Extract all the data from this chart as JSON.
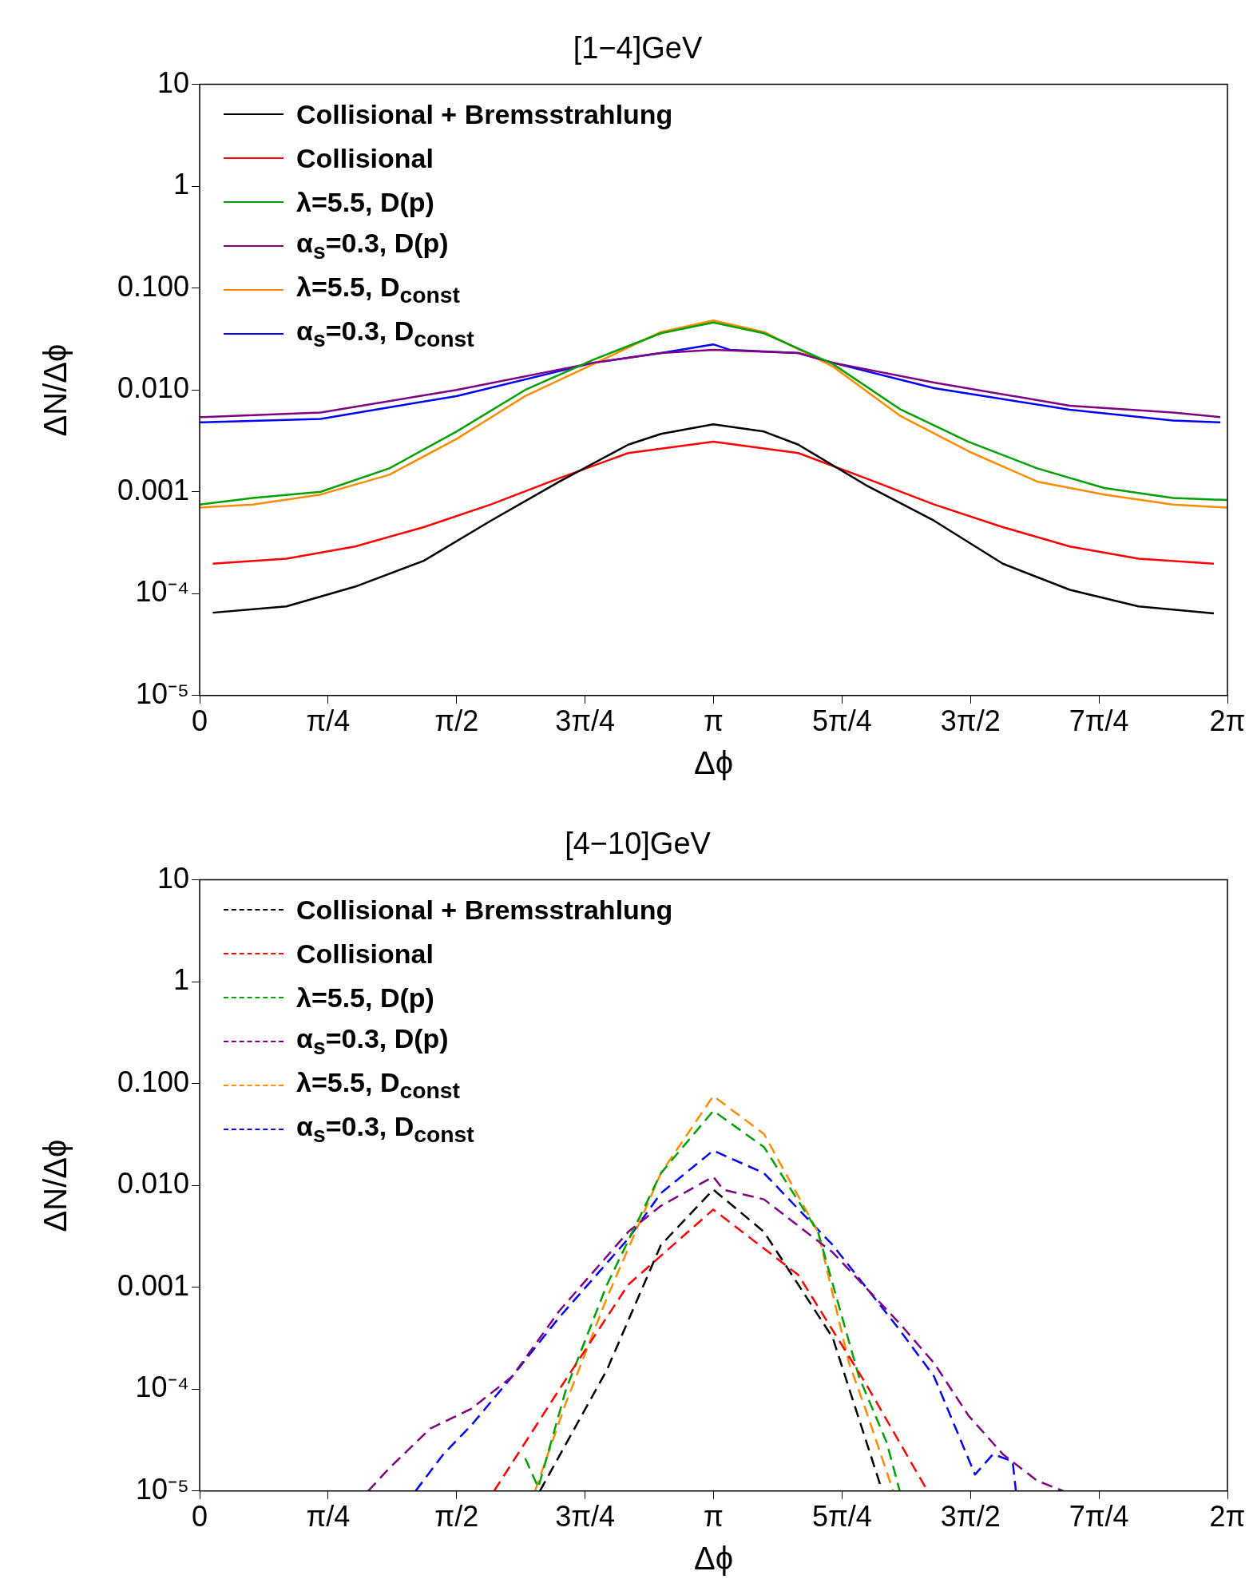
{
  "chart_data": [
    {
      "type": "line",
      "title": "[1−4]GeV",
      "xlabel": "Δϕ",
      "ylabel": "ΔN/Δϕ",
      "log": "y",
      "legend": "top left",
      "line_style": "solid",
      "marker": "none",
      "grid": false,
      "xlim": [
        0,
        6.2832
      ],
      "xticks": [
        0,
        {
          "value": 0.7854,
          "label": "π/4"
        },
        {
          "value": 1.5708,
          "label": "π/2"
        },
        {
          "value": 2.3562,
          "label": "3π/4"
        },
        {
          "value": 3.1416,
          "label": "π"
        },
        {
          "value": 3.927,
          "label": "5π/4"
        },
        {
          "value": 4.7124,
          "label": "3π/2"
        },
        {
          "value": 5.4978,
          "label": "7π/4"
        },
        {
          "value": 6.2832,
          "label": "2π"
        }
      ],
      "ylim": [
        1e-05,
        10
      ],
      "yticks": [
        {
          "value": 1e-05,
          "label": "10⁻⁵"
        },
        {
          "value": 0.0001,
          "label": "10⁻⁴"
        },
        {
          "value": 0.001,
          "label": "0.001"
        },
        {
          "value": 0.01,
          "label": "0.010"
        },
        {
          "value": 0.1,
          "label": "0.100"
        },
        {
          "value": 1,
          "label": "1"
        },
        {
          "value": 10,
          "label": "10"
        }
      ],
      "series": [
        {
          "name": "Collisional + Bremsstrahlung",
          "color": "#000000",
          "x": [
            0.08,
            0.53,
            0.95,
            1.37,
            1.78,
            2.2,
            2.62,
            2.82,
            3.14,
            3.45,
            3.66,
            4.07,
            4.49,
            4.91,
            5.32,
            5.74,
            6.2
          ],
          "values": [
            6.5e-05,
            7.5e-05,
            0.000117,
            0.00021,
            0.00052,
            0.00126,
            0.0029,
            0.0037,
            0.0046,
            0.0039,
            0.0029,
            0.00117,
            0.00052,
            0.000197,
            0.000109,
            7.5e-05,
            6.4e-05
          ]
        },
        {
          "name": "Collisional",
          "color": "#ff0000",
          "x": [
            0.08,
            0.53,
            0.95,
            1.37,
            1.78,
            2.2,
            2.62,
            3.14,
            3.66,
            4.07,
            4.49,
            4.91,
            5.32,
            5.74,
            6.2
          ],
          "values": [
            0.000197,
            0.00022,
            0.00029,
            0.00045,
            0.00075,
            0.00136,
            0.0024,
            0.0031,
            0.0024,
            0.00136,
            0.00075,
            0.00045,
            0.00029,
            0.00022,
            0.000197
          ]
        },
        {
          "name": "λ=5.5, D(p)",
          "color": "#00a000",
          "x": [
            0,
            0.325,
            0.74,
            1.16,
            1.57,
            1.99,
            2.41,
            2.82,
            3.14,
            3.45,
            3.87,
            4.28,
            4.7,
            5.12,
            5.53,
            5.95,
            6.28
          ],
          "values": [
            0.00075,
            0.00087,
            0.001,
            0.0017,
            0.0039,
            0.01,
            0.0199,
            0.036,
            0.046,
            0.036,
            0.018,
            0.0065,
            0.0031,
            0.0017,
            0.00109,
            0.00087,
            0.00083
          ]
        },
        {
          "name": "α$_{s}$=0.3, D(p)",
          "color": "#800080",
          "x": [
            0,
            0.74,
            1.57,
            2.41,
            2.82,
            3.14,
            3.66,
            3.87,
            4.49,
            5.32,
            5.95,
            6.24
          ],
          "values": [
            0.0054,
            0.006,
            0.01,
            0.0185,
            0.023,
            0.0248,
            0.023,
            0.0185,
            0.0118,
            0.007,
            0.006,
            0.0054
          ]
        },
        {
          "name": "λ=5.5, D$_{const}$",
          "color": "#ff8c00",
          "x": [
            0,
            0.325,
            0.74,
            1.16,
            1.57,
            1.99,
            2.41,
            2.82,
            3.14,
            3.45,
            3.87,
            4.28,
            4.7,
            5.12,
            5.53,
            5.95,
            6.28
          ],
          "values": [
            0.0007,
            0.00075,
            0.00094,
            0.00147,
            0.0033,
            0.0087,
            0.018,
            0.037,
            0.048,
            0.037,
            0.017,
            0.0056,
            0.0025,
            0.00126,
            0.00094,
            0.00075,
            0.0007
          ]
        },
        {
          "name": "α$_{s}$=0.3, D$_{const}$",
          "color": "#0000ff",
          "x": [
            0,
            0.74,
            1.57,
            2.41,
            2.82,
            3.14,
            3.24,
            3.66,
            3.87,
            4.49,
            5.32,
            5.95,
            6.24
          ],
          "values": [
            0.0048,
            0.0052,
            0.0087,
            0.0185,
            0.023,
            0.028,
            0.0248,
            0.023,
            0.0185,
            0.0104,
            0.0064,
            0.005,
            0.0048
          ]
        }
      ]
    },
    {
      "type": "line",
      "title": "[4−10]GeV",
      "xlabel": "Δϕ",
      "ylabel": "ΔN/Δϕ",
      "log": "y",
      "legend": "top left",
      "line_style": "dashed",
      "marker": "none",
      "grid": false,
      "xlim": [
        0,
        6.2832
      ],
      "xticks": [
        0,
        {
          "value": 0.7854,
          "label": "π/4"
        },
        {
          "value": 1.5708,
          "label": "π/2"
        },
        {
          "value": 2.3562,
          "label": "3π/4"
        },
        {
          "value": 3.1416,
          "label": "π"
        },
        {
          "value": 3.927,
          "label": "5π/4"
        },
        {
          "value": 4.7124,
          "label": "3π/2"
        },
        {
          "value": 5.4978,
          "label": "7π/4"
        },
        {
          "value": 6.2832,
          "label": "2π"
        }
      ],
      "ylim": [
        1e-05,
        10
      ],
      "yticks": [
        {
          "value": 1e-05,
          "label": "10⁻⁵"
        },
        {
          "value": 0.0001,
          "label": "10⁻⁴"
        },
        {
          "value": 0.001,
          "label": "0.001"
        },
        {
          "value": 0.01,
          "label": "0.010"
        },
        {
          "value": 0.1,
          "label": "0.100"
        },
        {
          "value": 1,
          "label": "1"
        },
        {
          "value": 10,
          "label": "10"
        }
      ],
      "series": [
        {
          "name": "Collisional + Bremsstrahlung",
          "color": "#000000",
          "x": [
            2.08,
            2.49,
            2.82,
            3.14,
            3.45,
            3.87,
            4.16
          ],
          "values": [
            1e-05,
            0.000155,
            0.0026,
            0.0091,
            0.0035,
            0.00032,
            1.16e-05
          ]
        },
        {
          "name": "Collisional",
          "color": "#ff0000",
          "x": [
            1.8,
            2.2,
            2.62,
            3.14,
            3.66,
            4.07,
            4.45
          ],
          "values": [
            1e-05,
            0.0001,
            0.00106,
            0.0058,
            0.00132,
            0.000115,
            1e-05
          ]
        },
        {
          "name": "λ=5.5, D(p)",
          "color": "#00a000",
          "x": [
            1.99,
            2.07,
            2.24,
            2.49,
            2.82,
            3.14,
            3.45,
            3.78,
            4.03,
            4.2,
            4.28
          ],
          "values": [
            2.1e-05,
            1.08e-05,
            0.0001,
            0.00106,
            0.0132,
            0.054,
            0.0238,
            0.0035,
            0.000133,
            3e-05,
            1e-05
          ]
        },
        {
          "name": "α$_{s}$=0.3, D(p)",
          "color": "#800080",
          "x": [
            1.03,
            1.16,
            1.41,
            1.66,
            1.91,
            2.2,
            2.62,
            2.82,
            3.14,
            3.2,
            3.45,
            3.87,
            4.28,
            4.49,
            4.7,
            4.91,
            5.12,
            5.28
          ],
          "values": [
            1e-05,
            1.68e-05,
            4.1e-05,
            6.4e-05,
            0.000133,
            0.00059,
            0.0035,
            0.0063,
            0.0122,
            0.0091,
            0.0073,
            0.0022,
            0.00044,
            0.00018,
            5.5e-05,
            2.3e-05,
            1.26e-05,
            1e-05
          ]
        },
        {
          "name": "λ=5.5, D$_{const}$",
          "color": "#ff8c00",
          "x": [
            2.05,
            2.24,
            2.49,
            2.82,
            3.14,
            3.45,
            3.78,
            3.97,
            4.07,
            4.24
          ],
          "values": [
            1e-05,
            7.4e-05,
            0.00079,
            0.0132,
            0.0755,
            0.032,
            0.0035,
            0.00018,
            6.4e-05,
            1e-05
          ]
        },
        {
          "name": "α$_{s}$=0.3, D$_{const}$",
          "color": "#0000ff",
          "x": [
            1.32,
            1.49,
            1.66,
            1.91,
            2.2,
            2.62,
            2.82,
            3.14,
            3.45,
            3.87,
            4.28,
            4.49,
            4.74,
            4.85,
            4.97,
            4.99
          ],
          "values": [
            1e-05,
            2.3e-05,
            4.4e-05,
            0.000133,
            0.00051,
            0.003,
            0.0084,
            0.022,
            0.0132,
            0.0026,
            0.00038,
            0.000133,
            1.45e-05,
            2.3e-05,
            1.95e-05,
            1e-05
          ]
        }
      ]
    }
  ]
}
